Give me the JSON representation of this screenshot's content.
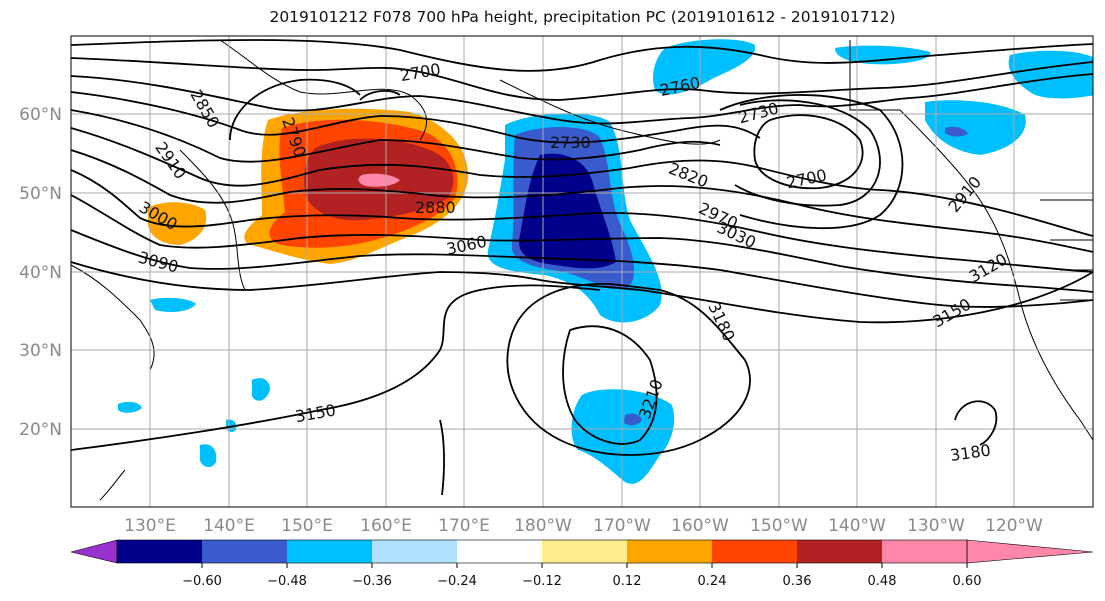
{
  "title": "2019101212 F078 700 hPa height, precipitation PC (2019101612 - 2019101712)",
  "lat_labels": [
    "60°N",
    "50°N",
    "40°N",
    "30°N",
    "20°N"
  ],
  "lon_labels": [
    "130°E",
    "140°E",
    "150°E",
    "160°E",
    "170°E",
    "180°W",
    "170°W",
    "160°W",
    "150°W",
    "140°W",
    "130°W",
    "120°W"
  ],
  "contour_labels": [
    "2700",
    "2760",
    "2730",
    "2850",
    "2910",
    "2790",
    "3000",
    "3090",
    "2880",
    "3060",
    "2730",
    "2820",
    "2700",
    "2970",
    "3030",
    "3120",
    "3150",
    "3180",
    "3150",
    "3210",
    "3180",
    "2910"
  ],
  "colorbar": {
    "colors": [
      "#9932cc",
      "#00008b",
      "#3a5bcc",
      "#00bfff",
      "#b0e2ff",
      "#ffffff",
      "#ffec8b",
      "#ffa500",
      "#ff4500",
      "#b22222",
      "#ff88aa"
    ],
    "tick_labels": [
      "−0.60",
      "−0.48",
      "−0.36",
      "−0.24",
      "−0.12",
      "0.12",
      "0.24",
      "0.36",
      "0.48",
      "0.60"
    ]
  }
}
